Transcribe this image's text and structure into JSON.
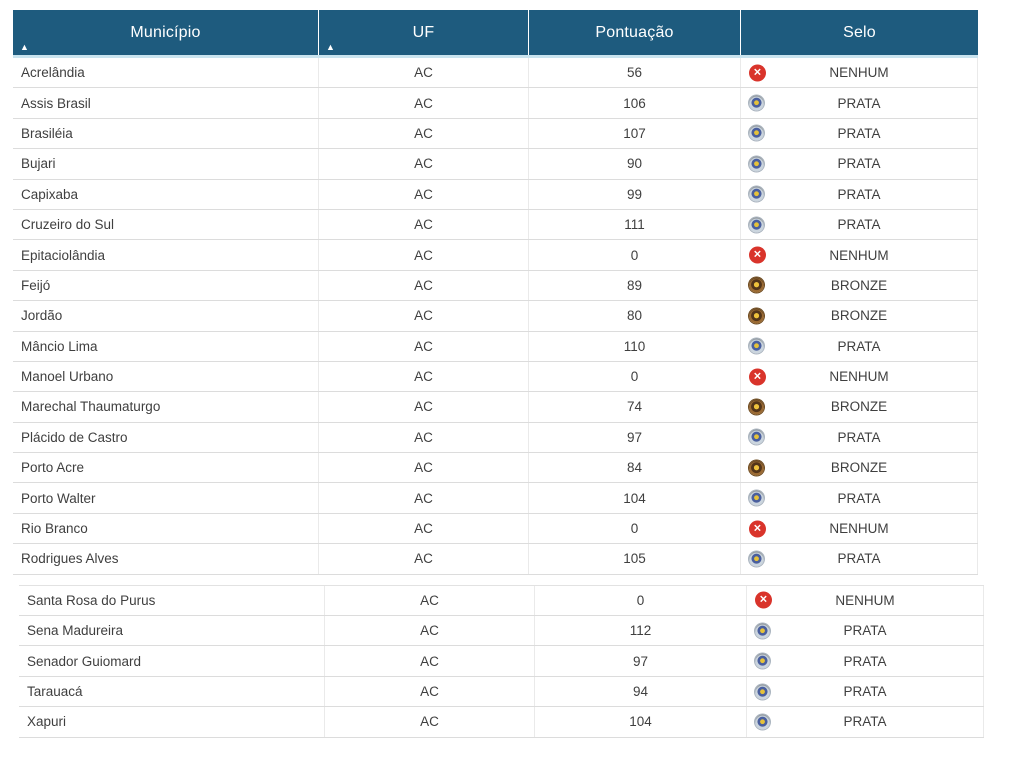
{
  "table": {
    "columns": [
      {
        "label": "Município",
        "sortable": true,
        "sort_direction": "asc"
      },
      {
        "label": "UF",
        "sortable": true,
        "sort_direction": "asc"
      },
      {
        "label": "Pontuação",
        "sortable": false
      },
      {
        "label": "Selo",
        "sortable": false
      }
    ],
    "sections": [
      {
        "rows": [
          {
            "municipio": "Acrelândia",
            "uf": "AC",
            "pontuacao": "56",
            "selo": "NENHUM"
          },
          {
            "municipio": "Assis Brasil",
            "uf": "AC",
            "pontuacao": "106",
            "selo": "PRATA"
          },
          {
            "municipio": "Brasiléia",
            "uf": "AC",
            "pontuacao": "107",
            "selo": "PRATA"
          },
          {
            "municipio": "Bujari",
            "uf": "AC",
            "pontuacao": "90",
            "selo": "PRATA"
          },
          {
            "municipio": "Capixaba",
            "uf": "AC",
            "pontuacao": "99",
            "selo": "PRATA"
          },
          {
            "municipio": "Cruzeiro do Sul",
            "uf": "AC",
            "pontuacao": "111",
            "selo": "PRATA"
          },
          {
            "municipio": "Epitaciolândia",
            "uf": "AC",
            "pontuacao": "0",
            "selo": "NENHUM"
          },
          {
            "municipio": "Feijó",
            "uf": "AC",
            "pontuacao": "89",
            "selo": "BRONZE"
          },
          {
            "municipio": "Jordão",
            "uf": "AC",
            "pontuacao": "80",
            "selo": "BRONZE"
          },
          {
            "municipio": "Mâncio Lima",
            "uf": "AC",
            "pontuacao": "110",
            "selo": "PRATA"
          },
          {
            "municipio": "Manoel Urbano",
            "uf": "AC",
            "pontuacao": "0",
            "selo": "NENHUM"
          },
          {
            "municipio": "Marechal Thaumaturgo",
            "uf": "AC",
            "pontuacao": "74",
            "selo": "BRONZE"
          },
          {
            "municipio": "Plácido de Castro",
            "uf": "AC",
            "pontuacao": "97",
            "selo": "PRATA"
          },
          {
            "municipio": "Porto Acre",
            "uf": "AC",
            "pontuacao": "84",
            "selo": "BRONZE"
          },
          {
            "municipio": "Porto Walter",
            "uf": "AC",
            "pontuacao": "104",
            "selo": "PRATA"
          },
          {
            "municipio": "Rio Branco",
            "uf": "AC",
            "pontuacao": "0",
            "selo": "NENHUM"
          },
          {
            "municipio": "Rodrigues Alves",
            "uf": "AC",
            "pontuacao": "105",
            "selo": "PRATA"
          }
        ]
      },
      {
        "rows": [
          {
            "municipio": "Santa Rosa do Purus",
            "uf": "AC",
            "pontuacao": "0",
            "selo": "NENHUM"
          },
          {
            "municipio": "Sena Madureira",
            "uf": "AC",
            "pontuacao": "112",
            "selo": "PRATA"
          },
          {
            "municipio": "Senador Guiomard",
            "uf": "AC",
            "pontuacao": "97",
            "selo": "PRATA"
          },
          {
            "municipio": "Tarauacá",
            "uf": "AC",
            "pontuacao": "94",
            "selo": "PRATA"
          },
          {
            "municipio": "Xapuri",
            "uf": "AC",
            "pontuacao": "104",
            "selo": "PRATA"
          }
        ]
      }
    ]
  },
  "icons": {
    "sort_ascending": "▲",
    "nenhum_x": "✕"
  },
  "colors": {
    "header_bg": "#1E5B7E",
    "header_text": "#FFFFFF",
    "header_bottom_border": "#C9E4EF",
    "row_border": "#DCDCDC",
    "body_text": "#3F3F3F",
    "seal_nenhum_red": "#D9342B",
    "seal_prata_silver": "#CBD5DE",
    "seal_bronze": "#9C6B33",
    "seal_gold_center": "#E6C23A"
  }
}
